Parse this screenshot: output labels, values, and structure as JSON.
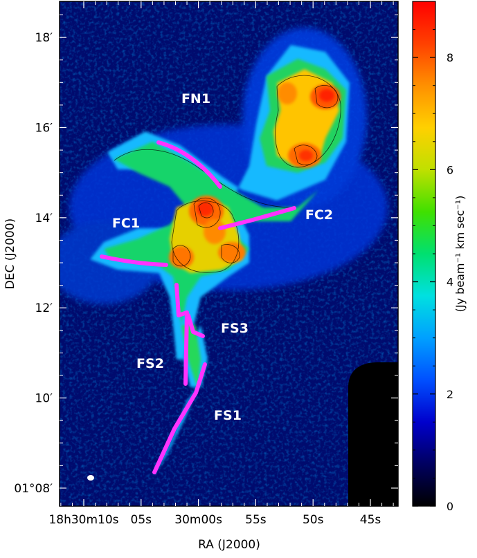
{
  "chart_data": {
    "type": "heatmap",
    "x_axis": {
      "label": "RA (J2000)",
      "ticks": [
        {
          "value_arcsec": 0,
          "text": "18h30m10s"
        },
        {
          "value_arcsec": -75,
          "text": "05s"
        },
        {
          "value_arcsec": -150,
          "text": "30m00s"
        },
        {
          "value_arcsec": -225,
          "text": "55s"
        },
        {
          "value_arcsec": -300,
          "text": "50s"
        },
        {
          "value_arcsec": -375,
          "text": "45s"
        }
      ]
    },
    "y_axis": {
      "label": "DEC (J2000)",
      "ticks": [
        {
          "value_arcmin": 8,
          "text": "01°08′"
        },
        {
          "value_arcmin": 10,
          "text": "10′"
        },
        {
          "value_arcmin": 12,
          "text": "12′"
        },
        {
          "value_arcmin": 14,
          "text": "14′"
        },
        {
          "value_arcmin": 16,
          "text": "16′"
        },
        {
          "value_arcmin": 18,
          "text": "18′"
        }
      ],
      "range_arcmin": [
        7.6,
        18.8
      ]
    },
    "colorbar": {
      "label": "(Jy beam⁻¹ km sec⁻¹)",
      "range": [
        0,
        9
      ],
      "ticks": [
        0,
        2,
        4,
        6,
        8
      ],
      "colors": [
        "#000000",
        "#000060",
        "#0000cc",
        "#0050ff",
        "#00a0ff",
        "#00e0e0",
        "#00e070",
        "#40e000",
        "#c0e000",
        "#ffd000",
        "#ff9000",
        "#ff4000",
        "#ff0000"
      ]
    },
    "filament_color": "#ff33ff",
    "filament_labels": [
      "FN1",
      "FC1",
      "FC2",
      "FS1",
      "FS2",
      "FS3"
    ]
  }
}
